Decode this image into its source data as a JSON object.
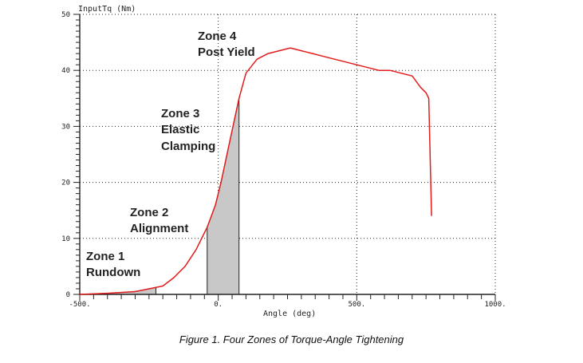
{
  "chart_data": {
    "type": "line",
    "ylabel": "InputTq (Nm)",
    "xlabel": "Angle (deg)",
    "xlim": [
      -500,
      1000
    ],
    "ylim": [
      0,
      50
    ],
    "y_ticks": [
      0,
      10,
      20,
      30,
      40,
      50
    ],
    "y_tick_labels": [
      "0",
      "10",
      "20",
      "30",
      "40",
      "50"
    ],
    "x_ticks": [
      -500,
      0,
      500,
      1000
    ],
    "x_tick_labels": [
      "-500.",
      "0.",
      "500.",
      "1000."
    ],
    "grid": "dotted",
    "series": [
      {
        "color": "#e31b1b",
        "x": [
          -500,
          -400,
          -300,
          -200,
          -160,
          -120,
          -80,
          -40,
          -10,
          10,
          40,
          75,
          100,
          140,
          180,
          220,
          260,
          300,
          340,
          380,
          420,
          460,
          500,
          540,
          580,
          620,
          660,
          700,
          730,
          750,
          760,
          770,
          770
        ],
        "y": [
          0,
          0.2,
          0.5,
          1.5,
          3,
          5,
          8,
          12,
          16,
          20,
          27,
          35,
          39.5,
          42,
          43,
          43.5,
          44,
          43.5,
          43,
          42.5,
          42,
          41.5,
          41,
          40.5,
          40,
          40,
          39.5,
          39,
          37,
          36,
          35,
          14,
          14
        ]
      }
    ],
    "shaded_regions": [
      {
        "label": "Zone 1",
        "x": [
          -500,
          -225
        ]
      },
      {
        "label": "Zone 3",
        "x": [
          -40,
          75
        ]
      }
    ],
    "zones": [
      {
        "line1": "Zone 1",
        "line2": "Rundown"
      },
      {
        "line1": "Zone 2",
        "line2": "Alignment"
      },
      {
        "line1": "Zone 3",
        "line2": "Elastic",
        "line3": "Clamping"
      },
      {
        "line1": "Zone 4",
        "line2": "Post Yield"
      }
    ]
  },
  "caption": "Figure 1. Four Zones of Torque-Angle Tightening"
}
